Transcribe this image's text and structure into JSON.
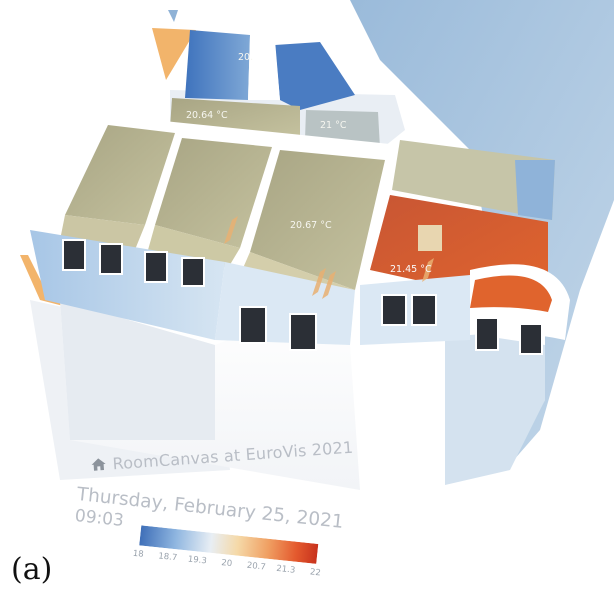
{
  "app": {
    "title": "RoomCanvas at EuroVis 2021",
    "date": "Thursday, February 25, 2021",
    "time": "09:03",
    "icon": "home-icon"
  },
  "rooms": {
    "room_top_center": "20.",
    "room_upper_left": "20.64 °C",
    "room_upper_right": "21 °C",
    "room_center": "20.67 °C",
    "room_right": "21.45 °C"
  },
  "legend": {
    "ticks": [
      "18",
      "18.7",
      "19.3",
      "20",
      "20.7",
      "21.3",
      "22"
    ],
    "colors": [
      "#3f6fb8",
      "#8fb6e0",
      "#e8eef4",
      "#f5d9a8",
      "#f0a063",
      "#e45a2e",
      "#c8321d"
    ]
  },
  "panel": {
    "label": "(a)"
  }
}
